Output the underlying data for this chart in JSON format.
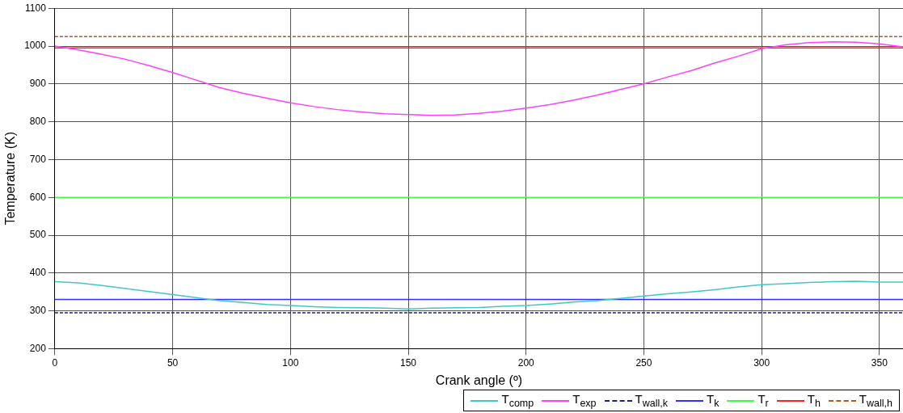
{
  "chart_data": {
    "type": "line",
    "xlabel": "Crank angle (º)",
    "ylabel": "Temperature (K)",
    "x": [
      0,
      10,
      20,
      30,
      40,
      50,
      60,
      70,
      80,
      90,
      100,
      110,
      120,
      130,
      140,
      150,
      160,
      170,
      180,
      190,
      200,
      210,
      220,
      230,
      240,
      250,
      260,
      270,
      280,
      290,
      300,
      310,
      320,
      330,
      340,
      350,
      360
    ],
    "series": [
      {
        "name": "T$_{comp}$",
        "color": "#40c8c8",
        "line_style": "solid",
        "values": [
          377,
          374,
          367,
          359,
          351,
          343,
          335,
          327,
          322,
          317,
          314,
          311,
          309,
          308,
          307,
          305,
          307,
          308,
          309,
          312,
          314,
          318,
          323,
          327,
          333,
          339,
          345,
          350,
          356,
          363,
          369,
          372,
          375,
          377,
          378,
          376,
          376
        ]
      },
      {
        "name": "T$_{exp}$",
        "color": "#ff40ff",
        "line_style": "solid",
        "values": [
          1000,
          990,
          978,
          965,
          948,
          930,
          910,
          890,
          875,
          862,
          850,
          840,
          832,
          826,
          821,
          819,
          817,
          818,
          822,
          828,
          836,
          845,
          857,
          870,
          885,
          900,
          918,
          935,
          955,
          973,
          993,
          1003,
          1009,
          1011,
          1010,
          1006,
          998
        ]
      },
      {
        "name": "T$_{wall,k}$",
        "color": "#1a237e",
        "line_style": "dashed",
        "values": [
          295,
          295,
          295,
          295,
          295,
          295,
          295,
          295,
          295,
          295,
          295,
          295,
          295,
          295,
          295,
          295,
          295,
          295,
          295,
          295,
          295,
          295,
          295,
          295,
          295,
          295,
          295,
          295,
          295,
          295,
          295,
          295,
          295,
          295,
          295,
          295,
          295
        ]
      },
      {
        "name": "T$_{k}$",
        "color": "#3030ff",
        "line_style": "solid",
        "values": [
          330,
          330,
          330,
          330,
          330,
          330,
          330,
          330,
          330,
          330,
          330,
          330,
          330,
          330,
          330,
          330,
          330,
          330,
          330,
          330,
          330,
          330,
          330,
          330,
          330,
          330,
          330,
          330,
          330,
          330,
          330,
          330,
          330,
          330,
          330,
          330,
          330
        ]
      },
      {
        "name": "T$_{r}$",
        "color": "#40ff40",
        "line_style": "solid",
        "values": [
          600,
          600,
          600,
          600,
          600,
          600,
          600,
          600,
          600,
          600,
          600,
          600,
          600,
          600,
          600,
          600,
          600,
          600,
          600,
          600,
          600,
          600,
          600,
          600,
          600,
          600,
          600,
          600,
          600,
          600,
          600,
          600,
          600,
          600,
          600,
          600,
          600
        ]
      },
      {
        "name": "T$_{h}$",
        "color": "#ff2020",
        "line_style": "solid",
        "values": [
          995,
          995,
          995,
          995,
          995,
          995,
          995,
          995,
          995,
          995,
          995,
          995,
          995,
          995,
          995,
          995,
          995,
          995,
          995,
          995,
          995,
          995,
          995,
          995,
          995,
          995,
          995,
          995,
          995,
          995,
          995,
          995,
          995,
          995,
          995,
          995,
          995
        ]
      },
      {
        "name": "T$_{wall,h}$",
        "color": "#b05a20",
        "line_style": "dashed",
        "values": [
          1025,
          1025,
          1025,
          1025,
          1025,
          1025,
          1025,
          1025,
          1025,
          1025,
          1025,
          1025,
          1025,
          1025,
          1025,
          1025,
          1025,
          1025,
          1025,
          1025,
          1025,
          1025,
          1025,
          1025,
          1025,
          1025,
          1025,
          1025,
          1025,
          1025,
          1025,
          1025,
          1025,
          1025,
          1025,
          1025,
          1025
        ]
      }
    ],
    "xlim": [
      0,
      360
    ],
    "xticks": [
      0,
      50,
      100,
      150,
      200,
      250,
      300,
      350
    ],
    "ylim": [
      200,
      1100
    ],
    "yticks": [
      200,
      300,
      400,
      500,
      600,
      700,
      800,
      900,
      1000,
      1100
    ],
    "grid": true,
    "legend": "bottom right"
  }
}
